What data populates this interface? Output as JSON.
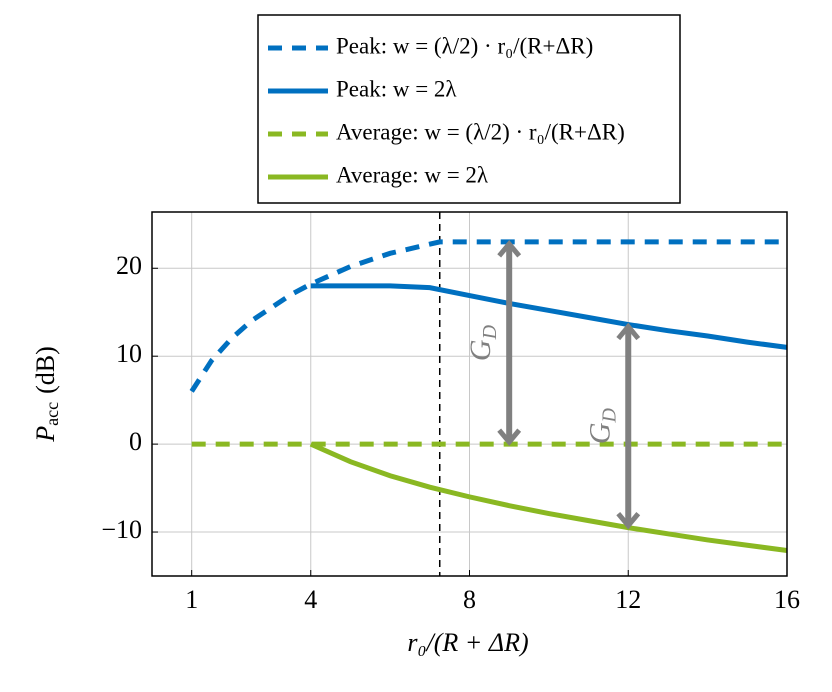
{
  "chart_data": {
    "type": "line",
    "xlabel": "r₀/(R + ΔR)",
    "ylabel": {
      "main": "P",
      "sub": "acc",
      "unit": "(dB)"
    },
    "xlim": [
      0,
      16
    ],
    "xticks": [
      1,
      4,
      8,
      12,
      16
    ],
    "ylim": [
      -15,
      26.4
    ],
    "yticks": [
      -10,
      0,
      10,
      20
    ],
    "grid": true,
    "legend": "top",
    "vline": 7.25,
    "series": [
      {
        "name": "Peak: w = (λ/2) · r₀/(R+ΔR)",
        "color": "#0070c0",
        "dashed": true,
        "x": [
          1,
          1.5,
          2,
          2.5,
          3,
          3.5,
          4,
          5,
          6,
          7.25,
          8,
          10,
          12,
          14,
          16
        ],
        "values": [
          6,
          9.5,
          12,
          14,
          15.5,
          17,
          18.2,
          20.2,
          21.7,
          23,
          23,
          23,
          23,
          23,
          23
        ]
      },
      {
        "name": "Peak: w = 2λ",
        "color": "#0070c0",
        "dashed": false,
        "x": [
          4,
          5,
          6,
          7,
          8,
          9,
          10,
          11,
          12,
          13,
          14,
          15,
          16
        ],
        "values": [
          18,
          18,
          18,
          17.8,
          16.9,
          16,
          15.2,
          14.4,
          13.6,
          12.9,
          12.3,
          11.6,
          11.0
        ]
      },
      {
        "name": "Average: w = (λ/2) · r₀/(R+ΔR)",
        "color": "#8ab822",
        "dashed": true,
        "x": [
          1,
          16
        ],
        "values": [
          0,
          0
        ]
      },
      {
        "name": "Average: w = 2λ",
        "color": "#8ab822",
        "dashed": false,
        "x": [
          4,
          5,
          6,
          7,
          8,
          9,
          10,
          11,
          12,
          13,
          14,
          15,
          16
        ],
        "values": [
          0,
          -2,
          -3.6,
          -4.9,
          -6,
          -7,
          -7.9,
          -8.7,
          -9.5,
          -10.2,
          -10.9,
          -11.5,
          -12.1
        ]
      }
    ],
    "annotations": [
      {
        "label": "G",
        "sub": "D",
        "x": 9,
        "y1": 23,
        "y2": 0
      },
      {
        "label": "G",
        "sub": "D",
        "x": 12,
        "y1": 13.6,
        "y2": -9.5
      }
    ]
  }
}
